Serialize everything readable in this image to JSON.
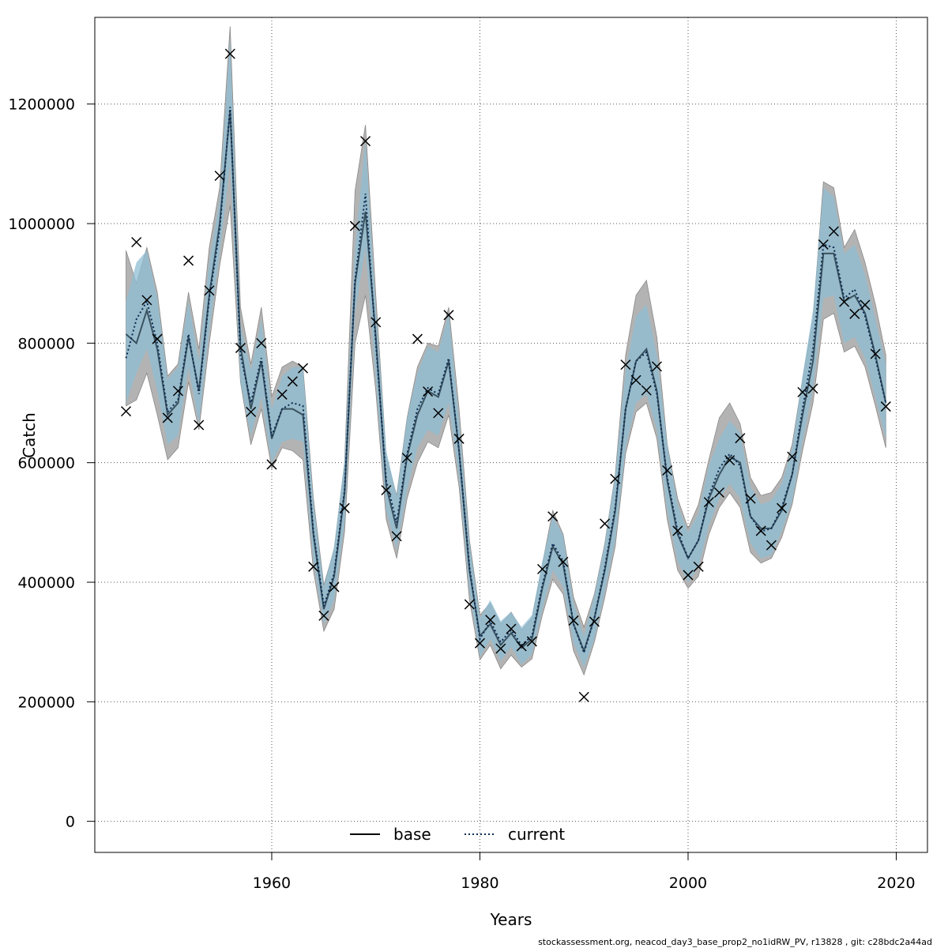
{
  "chart_data": {
    "type": "line",
    "title": "",
    "xlabel": "Years",
    "ylabel": "Catch",
    "xlim": [
      1943,
      2023
    ],
    "ylim": [
      -52000,
      1345000
    ],
    "grid": true,
    "x_ticks": [
      1960,
      1980,
      2000,
      2020
    ],
    "y_ticks": [
      0,
      200000,
      400000,
      600000,
      800000,
      1000000,
      1200000
    ],
    "x_tick_labels": [
      "1960",
      "1980",
      "2000",
      "2020"
    ],
    "y_tick_labels": [
      "0",
      "200000",
      "400000",
      "600000",
      "800000",
      "1000000",
      "1200000"
    ],
    "legend": {
      "placement": "bottom-center",
      "entries": [
        "base",
        "current"
      ]
    },
    "colors": {
      "base_band": "#b3b3b3",
      "current_band": "#8fbdd3",
      "base_line": "#3a5260",
      "current_line": "#0b2a52",
      "points": "#000000"
    },
    "years": [
      1946,
      1947,
      1948,
      1949,
      1950,
      1951,
      1952,
      1953,
      1954,
      1955,
      1956,
      1957,
      1958,
      1959,
      1960,
      1961,
      1962,
      1963,
      1964,
      1965,
      1966,
      1967,
      1968,
      1969,
      1970,
      1971,
      1972,
      1973,
      1974,
      1975,
      1976,
      1977,
      1978,
      1979,
      1980,
      1981,
      1982,
      1983,
      1984,
      1985,
      1986,
      1987,
      1988,
      1989,
      1990,
      1991,
      1992,
      1993,
      1994,
      1995,
      1996,
      1997,
      1998,
      1999,
      2000,
      2001,
      2002,
      2003,
      2004,
      2005,
      2006,
      2007,
      2008,
      2009,
      2010,
      2011,
      2012,
      2013,
      2014,
      2015,
      2016,
      2017,
      2018,
      2019
    ],
    "series": [
      {
        "name": "base",
        "values": [
          815000,
          800000,
          855000,
          790000,
          680000,
          700000,
          810000,
          720000,
          880000,
          1000000,
          1190000,
          795000,
          690000,
          770000,
          640000,
          690000,
          690000,
          680000,
          480000,
          355000,
          410000,
          550000,
          900000,
          1020000,
          810000,
          560000,
          490000,
          610000,
          680000,
          720000,
          710000,
          770000,
          620000,
          420000,
          310000,
          330000,
          295000,
          315000,
          290000,
          305000,
          390000,
          460000,
          430000,
          330000,
          285000,
          340000,
          420000,
          520000,
          690000,
          770000,
          790000,
          720000,
          570000,
          480000,
          440000,
          470000,
          540000,
          580000,
          610000,
          600000,
          510000,
          490000,
          490000,
          520000,
          580000,
          680000,
          770000,
          950000,
          950000,
          870000,
          880000,
          850000,
          780000,
          700000
        ],
        "lower": [
          695000,
          705000,
          750000,
          680000,
          605000,
          625000,
          735000,
          655000,
          800000,
          930000,
          1030000,
          735000,
          630000,
          690000,
          590000,
          625000,
          620000,
          605000,
          420000,
          318000,
          355000,
          485000,
          800000,
          880000,
          720000,
          505000,
          440000,
          540000,
          600000,
          635000,
          625000,
          680000,
          560000,
          370000,
          270000,
          295000,
          255000,
          278000,
          258000,
          272000,
          345000,
          405000,
          380000,
          285000,
          245000,
          300000,
          375000,
          460000,
          615000,
          685000,
          700000,
          640000,
          505000,
          420000,
          390000,
          410000,
          480000,
          525000,
          550000,
          525000,
          450000,
          432000,
          440000,
          475000,
          530000,
          620000,
          700000,
          840000,
          850000,
          785000,
          795000,
          760000,
          695000,
          625000
        ],
        "upper": [
          955000,
          900000,
          960000,
          885000,
          745000,
          765000,
          885000,
          790000,
          960000,
          1060000,
          1330000,
          860000,
          765000,
          860000,
          710000,
          760000,
          770000,
          760000,
          540000,
          395000,
          455000,
          600000,
          1055000,
          1165000,
          880000,
          610000,
          545000,
          675000,
          760000,
          800000,
          795000,
          860000,
          690000,
          470000,
          345000,
          365000,
          330000,
          350000,
          320000,
          340000,
          430000,
          520000,
          480000,
          375000,
          325000,
          380000,
          465000,
          580000,
          780000,
          880000,
          905000,
          810000,
          630000,
          540000,
          490000,
          530000,
          605000,
          675000,
          700000,
          665000,
          575000,
          545000,
          550000,
          575000,
          630000,
          740000,
          840000,
          1070000,
          1060000,
          960000,
          990000,
          935000,
          865000,
          780000
        ]
      },
      {
        "name": "current",
        "values": [
          775000,
          840000,
          870000,
          800000,
          685000,
          705000,
          815000,
          715000,
          875000,
          990000,
          1195000,
          780000,
          700000,
          775000,
          645000,
          690000,
          700000,
          695000,
          485000,
          360000,
          415000,
          555000,
          905000,
          1050000,
          800000,
          570000,
          500000,
          615000,
          690000,
          725000,
          715000,
          775000,
          620000,
          425000,
          305000,
          335000,
          300000,
          320000,
          295000,
          310000,
          395000,
          465000,
          435000,
          330000,
          282000,
          340000,
          425000,
          525000,
          690000,
          770000,
          785000,
          715000,
          575000,
          485000,
          440000,
          470000,
          545000,
          590000,
          615000,
          595000,
          510000,
          485000,
          490000,
          525000,
          580000,
          690000,
          790000,
          965000,
          960000,
          875000,
          890000,
          845000,
          775000,
          700000
        ],
        "lower": [
          700000,
          750000,
          790000,
          720000,
          630000,
          645000,
          760000,
          665000,
          820000,
          950000,
          1100000,
          735000,
          645000,
          710000,
          600000,
          635000,
          640000,
          635000,
          435000,
          330000,
          370000,
          500000,
          850000,
          960000,
          740000,
          520000,
          455000,
          555000,
          625000,
          655000,
          645000,
          700000,
          575000,
          385000,
          275000,
          305000,
          268000,
          292000,
          262000,
          280000,
          355000,
          420000,
          392000,
          298000,
          258000,
          305000,
          385000,
          470000,
          625000,
          700000,
          715000,
          655000,
          520000,
          435000,
          400000,
          425000,
          495000,
          540000,
          565000,
          540000,
          465000,
          440000,
          445000,
          485000,
          535000,
          635000,
          725000,
          875000,
          880000,
          800000,
          810000,
          775000,
          710000,
          640000
        ],
        "upper": [
          870000,
          935000,
          955000,
          875000,
          740000,
          760000,
          870000,
          770000,
          935000,
          1040000,
          1310000,
          830000,
          755000,
          840000,
          690000,
          745000,
          760000,
          760000,
          535000,
          392000,
          460000,
          605000,
          960000,
          1140000,
          860000,
          620000,
          545000,
          675000,
          750000,
          795000,
          785000,
          850000,
          670000,
          465000,
          340000,
          370000,
          335000,
          350000,
          325000,
          345000,
          435000,
          510000,
          478000,
          365000,
          310000,
          378000,
          465000,
          580000,
          755000,
          845000,
          865000,
          780000,
          630000,
          530000,
          483000,
          515000,
          595000,
          640000,
          670000,
          650000,
          560000,
          530000,
          537000,
          565000,
          625000,
          745000,
          855000,
          1060000,
          1045000,
          950000,
          965000,
          915000,
          840000,
          765000
        ]
      },
      {
        "name": "observed",
        "values": [
          686000,
          969000,
          872000,
          807000,
          675000,
          720000,
          938000,
          663000,
          888000,
          1080000,
          1284000,
          792000,
          685000,
          800000,
          597000,
          714000,
          736000,
          758000,
          426000,
          344000,
          392000,
          524000,
          996000,
          1138000,
          835000,
          554000,
          477000,
          608000,
          807000,
          719000,
          683000,
          847000,
          640000,
          363000,
          298000,
          337000,
          289000,
          322000,
          293000,
          301000,
          422000,
          510000,
          434000,
          336000,
          208000,
          334000,
          498000,
          573000,
          764000,
          738000,
          721000,
          761000,
          587000,
          486000,
          412000,
          426000,
          534000,
          550000,
          604000,
          641000,
          540000,
          486000,
          462000,
          524000,
          610000,
          718000,
          724000,
          965000,
          987000,
          869000,
          849000,
          864000,
          782000,
          694000
        ]
      }
    ],
    "footer": "stockassessment.org, neacod_day3_base_prop2_no1idRW_PV, r13828 , git: c28bdc2a44ad"
  }
}
